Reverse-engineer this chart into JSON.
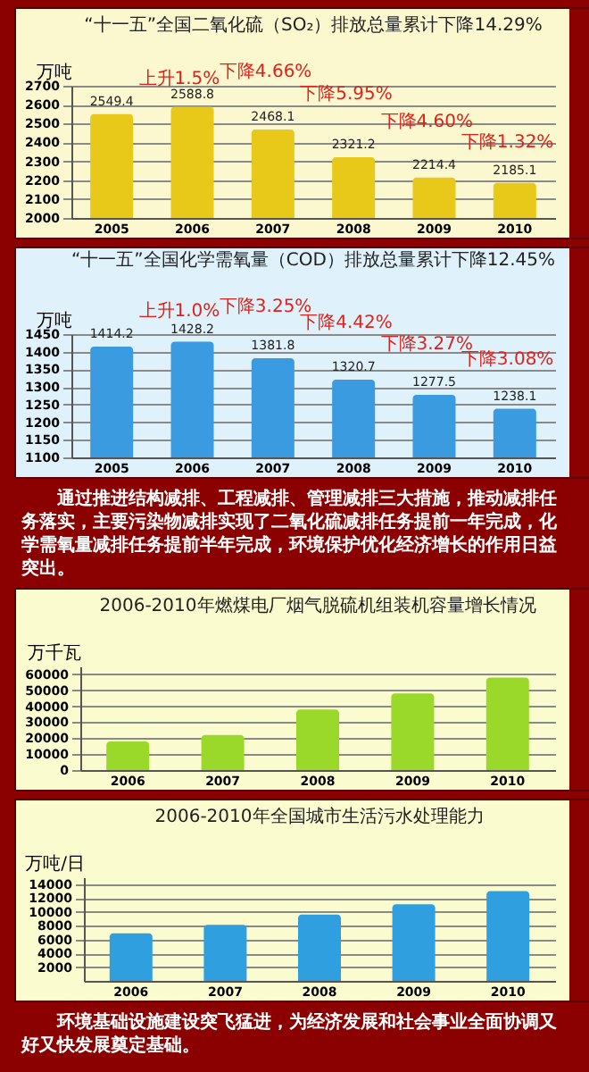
{
  "chart_data": [
    {
      "type": "bar",
      "title": "“十一五”全国二氧化硫（SO₂）排放总量累计下降14.29%",
      "ylabel": "万吨",
      "categories": [
        "2005",
        "2006",
        "2007",
        "2008",
        "2009",
        "2010"
      ],
      "values": [
        2549.4,
        2588.8,
        2468.1,
        2321.2,
        2214.4,
        2185.1
      ],
      "color": "#e8c818",
      "ylim": [
        2000,
        2700
      ],
      "yticks": [
        2000,
        2100,
        2200,
        2300,
        2400,
        2500,
        2600,
        2700
      ],
      "grid": "y",
      "data_labels": true,
      "annotations": [
        "上升1.5%",
        "下降4.66%",
        "下降5.95%",
        "下降4.60%",
        "下降1.32%"
      ]
    },
    {
      "type": "bar",
      "title": "“十一五”全国化学需氧量（COD）排放总量累计下降12.45%",
      "ylabel": "万吨",
      "categories": [
        "2005",
        "2006",
        "2007",
        "2008",
        "2009",
        "2010"
      ],
      "values": [
        1414.2,
        1428.2,
        1381.8,
        1320.7,
        1277.5,
        1238.1
      ],
      "color": "#3a9be0",
      "ylim": [
        1100,
        1450
      ],
      "yticks": [
        1100,
        1150,
        1200,
        1250,
        1300,
        1350,
        1400,
        1450
      ],
      "grid": "y",
      "data_labels": true,
      "annotations": [
        "上升1.0%",
        "下降3.25%",
        "下降4.42%",
        "下降3.27%",
        "下降3.08%"
      ]
    },
    {
      "type": "other",
      "annotations": [
        "通过推进结构减排、工程减排、管理减排三大措施，推动减排任务落实，主要污染物减排实现了二氧化硫减排任务提前一年完成，化学需氧量减排任务提前半年完成，环境保护优化经济增长的作用日益突出。"
      ]
    },
    {
      "type": "bar",
      "title": "2006-2010年燃煤电厂烟气脱硫机组装机容量增长情况",
      "ylabel": "万千瓦",
      "categories": [
        "2006",
        "2007",
        "2008",
        "2009",
        "2010"
      ],
      "values": [
        18000,
        22000,
        38000,
        48000,
        58000
      ],
      "color": "#9ad82a",
      "ylim": [
        0,
        65000
      ],
      "yticks": [
        0,
        10000,
        20000,
        30000,
        40000,
        50000,
        60000
      ],
      "grid": "y"
    },
    {
      "type": "bar",
      "title": "2006-2010年全国城市生活污水处理能力",
      "ylabel": "万吨/日",
      "categories": [
        "2006",
        "2007",
        "2008",
        "2009",
        "2010"
      ],
      "values": [
        6900,
        8100,
        9600,
        11100,
        13000
      ],
      "color": "#2f9fe0",
      "ylim": [
        0,
        15000
      ],
      "yticks": [
        2000,
        4000,
        6000,
        8000,
        10000,
        12000,
        14000
      ],
      "grid": "y"
    },
    {
      "type": "other",
      "annotations": [
        "环境基础设施建设突飞猛进，为经济发展和社会事业全面协调又好又快发展奠定基础。"
      ]
    }
  ]
}
